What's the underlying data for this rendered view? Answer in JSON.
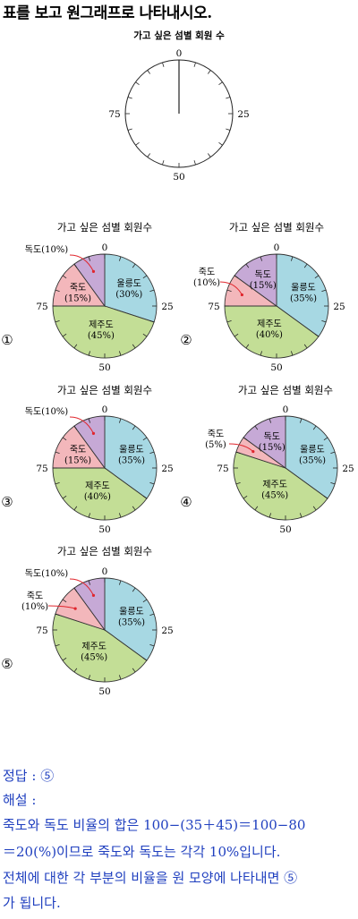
{
  "question": "표를 보고 원그래프로 나타내시오.",
  "main_chart": {
    "title": "가고 싶은 섬별 회원 수",
    "ticks": [
      "0",
      "25",
      "50",
      "75"
    ]
  },
  "chart_data": [
    {
      "type": "pie",
      "title": "가고 싶은 섬별 회원수",
      "option": "①",
      "ticks": [
        "0",
        "25",
        "50",
        "75"
      ],
      "slices": [
        {
          "label": "울릉도",
          "pct_label": "(30%)",
          "value": 30,
          "color": "#a7d8e3"
        },
        {
          "label": "제주도",
          "pct_label": "(45%)",
          "value": 45,
          "color": "#c3de96"
        },
        {
          "label": "죽도",
          "pct_label": "(15%)",
          "value": 15,
          "color": "#f3b7bb"
        },
        {
          "label": "독도(10%)",
          "pct_label": "",
          "value": 10,
          "color": "#c6a9d6"
        }
      ]
    },
    {
      "type": "pie",
      "title": "가고 싶은 섬별 회원수",
      "option": "②",
      "ticks": [
        "0",
        "25",
        "50",
        "75"
      ],
      "slices": [
        {
          "label": "울릉도",
          "pct_label": "(35%)",
          "value": 35,
          "color": "#a7d8e3"
        },
        {
          "label": "제주도",
          "pct_label": "(40%)",
          "value": 40,
          "color": "#c3de96"
        },
        {
          "label": "죽도",
          "pct_label": "(10%)",
          "value": 10,
          "color": "#f3b7bb"
        },
        {
          "label": "독도",
          "pct_label": "(15%)",
          "value": 15,
          "color": "#c6a9d6"
        }
      ]
    },
    {
      "type": "pie",
      "title": "가고 싶은 섬별 회원수",
      "option": "③",
      "ticks": [
        "0",
        "25",
        "50",
        "75"
      ],
      "slices": [
        {
          "label": "울릉도",
          "pct_label": "(35%)",
          "value": 35,
          "color": "#a7d8e3"
        },
        {
          "label": "제주도",
          "pct_label": "(40%)",
          "value": 40,
          "color": "#c3de96"
        },
        {
          "label": "죽도",
          "pct_label": "(15%)",
          "value": 15,
          "color": "#f3b7bb"
        },
        {
          "label": "독도(10%)",
          "pct_label": "",
          "value": 10,
          "color": "#c6a9d6"
        }
      ]
    },
    {
      "type": "pie",
      "title": "가고 싶은 섬별 회원수",
      "option": "④",
      "ticks": [
        "0",
        "25",
        "50",
        "75"
      ],
      "slices": [
        {
          "label": "울릉도",
          "pct_label": "(35%)",
          "value": 35,
          "color": "#a7d8e3"
        },
        {
          "label": "제주도",
          "pct_label": "(45%)",
          "value": 45,
          "color": "#c3de96"
        },
        {
          "label": "죽도",
          "pct_label": "(5%)",
          "value": 5,
          "color": "#f3b7bb"
        },
        {
          "label": "독도",
          "pct_label": "(15%)",
          "value": 15,
          "color": "#c6a9d6"
        }
      ]
    },
    {
      "type": "pie",
      "title": "가고 싶은 섬별 회원수",
      "option": "⑤",
      "ticks": [
        "0",
        "25",
        "50",
        "75"
      ],
      "slices": [
        {
          "label": "울릉도",
          "pct_label": "(35%)",
          "value": 35,
          "color": "#a7d8e3"
        },
        {
          "label": "제주도",
          "pct_label": "(45%)",
          "value": 45,
          "color": "#c3de96"
        },
        {
          "label": "죽도",
          "pct_label": "(10%)",
          "value": 10,
          "color": "#f3b7bb"
        },
        {
          "label": "독도(10%)",
          "pct_label": "",
          "value": 10,
          "color": "#c6a9d6"
        }
      ]
    }
  ],
  "answer": {
    "label": "정답 : ⑤",
    "explanation_label": "해설 :",
    "line1": "죽도와 독도 비율의 합은 100−(35＋45)＝100−80",
    "line2": "＝20(%)이므로 죽도와 독도는 각각 10%입니다.",
    "line3": "전체에 대한 각 부분의 비율을 원 모양에 나타내면 ⑤",
    "line4": "가 됩니다."
  },
  "colors": {
    "accent": "#1f3fbf",
    "arrow": "#e0262d"
  }
}
